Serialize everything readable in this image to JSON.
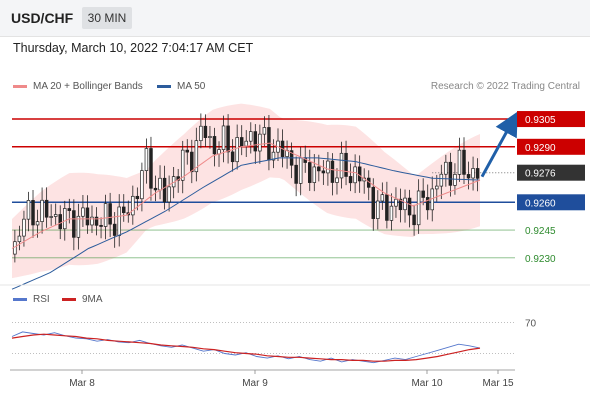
{
  "header": {
    "symbol": "USD/CHF",
    "timeframe": "30 MIN"
  },
  "timestamp": "Thursday, March 10, 2022 7:04:17 AM CET",
  "legend": {
    "ma20_bb": "MA 20 + Bollinger Bands",
    "ma50": "MA 50",
    "credit": "Research © 2022 Trading Central",
    "rsi": "RSI",
    "rsi_ma": "9MA"
  },
  "colors": {
    "resistance": "#cc0000",
    "pivot": "#1f4e9c",
    "support": "#2e8b2e",
    "current": "#333333",
    "arrow": "#1f5fa8",
    "ma20": "#ef8a8a",
    "ma50": "#2c5c9c",
    "rsi_line": "#5577cc",
    "rsi_ma": "#cc2222"
  },
  "chart_data": [
    {
      "type": "candlestick",
      "title": "USD/CHF 30 MIN",
      "x_ticks": [
        "Mar 8",
        "Mar 9",
        "Mar 10",
        "Mar 15"
      ],
      "ylim": [
        0.9218,
        0.9318
      ],
      "price_levels": [
        {
          "label": "0.9305",
          "value": 0.9305,
          "kind": "resistance"
        },
        {
          "label": "0.9290",
          "value": 0.929,
          "kind": "resistance"
        },
        {
          "label": "0.9276",
          "value": 0.9276,
          "kind": "current"
        },
        {
          "label": "0.9260",
          "value": 0.926,
          "kind": "pivot"
        },
        {
          "label": "0.9245",
          "value": 0.9245,
          "kind": "support"
        },
        {
          "label": "0.9230",
          "value": 0.923,
          "kind": "support"
        }
      ],
      "close_path": [
        [
          0,
          0.9232
        ],
        [
          2,
          0.9248
        ],
        [
          4,
          0.9256
        ],
        [
          6,
          0.9252
        ],
        [
          8,
          0.9255
        ],
        [
          10,
          0.925
        ],
        [
          12,
          0.9252
        ],
        [
          14,
          0.925
        ],
        [
          16,
          0.9252
        ],
        [
          18,
          0.9249
        ],
        [
          20,
          0.9251
        ],
        [
          22,
          0.925
        ],
        [
          24,
          0.9254
        ],
        [
          26,
          0.9265
        ],
        [
          28,
          0.9282
        ],
        [
          30,
          0.927
        ],
        [
          32,
          0.9262
        ],
        [
          34,
          0.9275
        ],
        [
          36,
          0.9282
        ],
        [
          38,
          0.9287
        ],
        [
          40,
          0.93
        ],
        [
          42,
          0.929
        ],
        [
          44,
          0.9292
        ],
        [
          46,
          0.9289
        ],
        [
          48,
          0.929
        ],
        [
          50,
          0.9296
        ],
        [
          52,
          0.9294
        ],
        [
          54,
          0.929
        ],
        [
          56,
          0.9288
        ],
        [
          58,
          0.9284
        ],
        [
          60,
          0.9275
        ],
        [
          62,
          0.928
        ],
        [
          64,
          0.9275
        ],
        [
          66,
          0.9278
        ],
        [
          68,
          0.9276
        ],
        [
          70,
          0.9277
        ],
        [
          72,
          0.9275
        ],
        [
          74,
          0.927
        ],
        [
          76,
          0.9258
        ],
        [
          78,
          0.9256
        ],
        [
          80,
          0.926
        ],
        [
          82,
          0.9257
        ],
        [
          84,
          0.9255
        ],
        [
          86,
          0.926
        ],
        [
          88,
          0.9265
        ],
        [
          90,
          0.9275
        ],
        [
          92,
          0.9277
        ],
        [
          94,
          0.9279
        ],
        [
          96,
          0.9276
        ],
        [
          98,
          0.9276
        ]
      ],
      "ma20_path": [
        [
          0,
          0.9235
        ],
        [
          6,
          0.9244
        ],
        [
          12,
          0.9251
        ],
        [
          18,
          0.9251
        ],
        [
          24,
          0.9253
        ],
        [
          30,
          0.9265
        ],
        [
          36,
          0.9274
        ],
        [
          42,
          0.9285
        ],
        [
          48,
          0.929
        ],
        [
          54,
          0.9292
        ],
        [
          60,
          0.9285
        ],
        [
          66,
          0.9278
        ],
        [
          72,
          0.9276
        ],
        [
          78,
          0.9265
        ],
        [
          84,
          0.9258
        ],
        [
          90,
          0.9264
        ],
        [
          98,
          0.9272
        ]
      ],
      "ma50_path": [
        [
          0,
          0.9213
        ],
        [
          8,
          0.9222
        ],
        [
          16,
          0.9235
        ],
        [
          24,
          0.9244
        ],
        [
          32,
          0.9255
        ],
        [
          40,
          0.9268
        ],
        [
          48,
          0.928
        ],
        [
          56,
          0.9284
        ],
        [
          64,
          0.9284
        ],
        [
          72,
          0.9282
        ],
        [
          80,
          0.9277
        ],
        [
          88,
          0.9273
        ],
        [
          98,
          0.9272
        ]
      ],
      "projection": {
        "from": 0.9276,
        "to": 0.9305
      }
    },
    {
      "type": "line",
      "title": "RSI",
      "y_ticks": [
        "70"
      ],
      "series": [
        {
          "name": "RSI",
          "values": [
            52,
            58,
            56,
            54,
            57,
            53,
            50,
            49,
            46,
            48,
            45,
            44,
            47,
            43,
            40,
            38,
            41,
            37,
            33,
            35,
            30,
            28,
            31,
            26,
            24,
            27,
            23,
            26,
            22,
            20,
            24,
            19,
            22,
            20,
            18,
            21,
            24,
            22,
            26,
            30,
            34,
            38,
            42,
            40,
            37
          ]
        },
        {
          "name": "9MA",
          "values": [
            50,
            52,
            54,
            55,
            54,
            53,
            52,
            50,
            49,
            47,
            46,
            45,
            44,
            43,
            41,
            40,
            39,
            38,
            36,
            35,
            33,
            31,
            30,
            29,
            27,
            26,
            25,
            25,
            24,
            23,
            22,
            22,
            21,
            21,
            20,
            20,
            21,
            21,
            22,
            24,
            26,
            29,
            32,
            35,
            37
          ]
        }
      ]
    }
  ]
}
